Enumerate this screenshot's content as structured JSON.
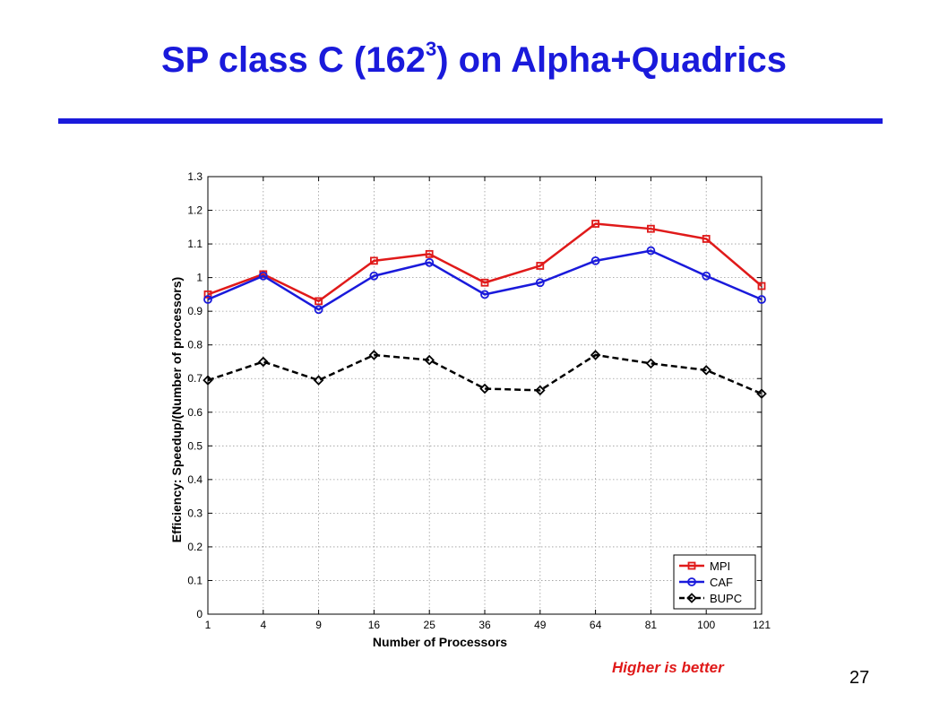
{
  "slide": {
    "title_main": "SP class C (162",
    "title_sup": "3",
    "title_rest": ") on Alpha+Quadrics",
    "footnote": "Higher is better",
    "page_number": "27"
  },
  "colors": {
    "title": "#1a1adb",
    "footnote": "#e01a1a",
    "mpi": "#e01a1a",
    "caf": "#1a1adb",
    "bupc": "#000000"
  },
  "chart_data": {
    "type": "line",
    "title": "",
    "xlabel": "Number of Processors",
    "ylabel": "Efficiency: Speedup/(Number of processors)",
    "x": [
      1,
      4,
      9,
      16,
      25,
      36,
      49,
      64,
      81,
      100,
      121
    ],
    "x_scale": "sqrt",
    "x_tick_labels": [
      "1",
      "4",
      "9",
      "16",
      "25",
      "36",
      "49",
      "64",
      "81",
      "100",
      "121"
    ],
    "ylim": [
      0,
      1.3
    ],
    "y_ticks": [
      0,
      0.1,
      0.2,
      0.3,
      0.4,
      0.5,
      0.6,
      0.7,
      0.8,
      0.9,
      1,
      1.1,
      1.2,
      1.3
    ],
    "y_tick_labels": [
      "0",
      "0.1",
      "0.2",
      "0.3",
      "0.4",
      "0.5",
      "0.6",
      "0.7",
      "0.8",
      "0.9",
      "1",
      "1.1",
      "1.2",
      "1.3"
    ],
    "grid": true,
    "legend_position": "bottom-right",
    "series": [
      {
        "name": "MPI",
        "color": "#e01a1a",
        "marker": "square",
        "dash": "solid",
        "values": [
          0.95,
          1.01,
          0.93,
          1.05,
          1.07,
          0.985,
          1.035,
          1.16,
          1.145,
          1.115,
          0.975
        ]
      },
      {
        "name": "CAF",
        "color": "#1a1adb",
        "marker": "circle",
        "dash": "solid",
        "values": [
          0.935,
          1.005,
          0.905,
          1.005,
          1.045,
          0.95,
          0.985,
          1.05,
          1.08,
          1.005,
          0.935
        ]
      },
      {
        "name": "BUPC",
        "color": "#000000",
        "marker": "diamond",
        "dash": "dashed",
        "values": [
          0.695,
          0.75,
          0.695,
          0.77,
          0.755,
          0.67,
          0.665,
          0.77,
          0.745,
          0.725,
          0.655
        ]
      }
    ]
  }
}
